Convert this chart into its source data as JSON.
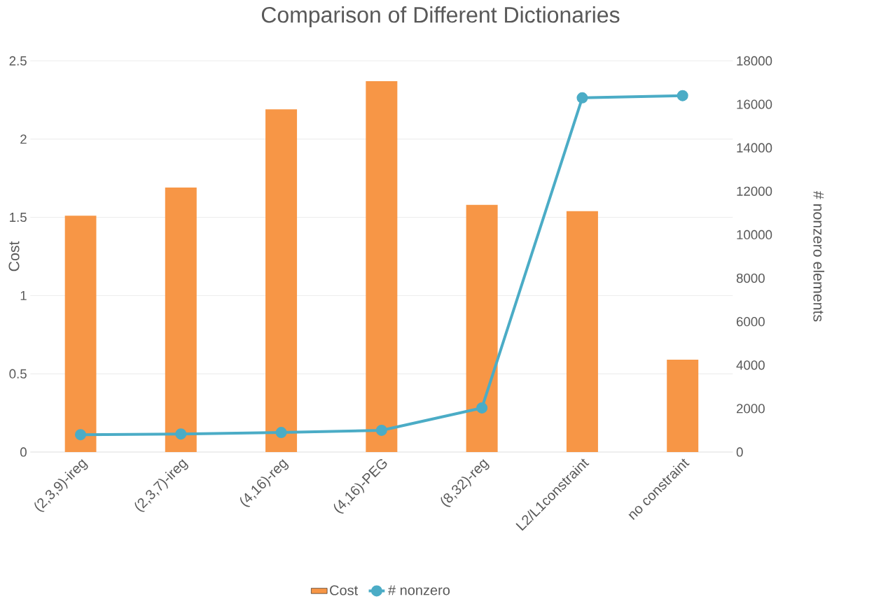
{
  "chart_data": {
    "type": "bar",
    "title": "Comparison of Different Dictionaries",
    "ylabel": "Cost",
    "y2label": "# nonzero elements",
    "categories": [
      "(2,3,9)-ireg",
      "(2,3,7)-ireg",
      "(4,16)-reg",
      "(4,16)-PEG",
      "(8,32)-reg",
      "L2/L1constraint",
      "no constraint"
    ],
    "series": [
      {
        "name": "Cost",
        "color": "#f79646",
        "values": [
          1.51,
          1.69,
          2.19,
          2.37,
          1.58,
          1.54,
          0.59
        ]
      },
      {
        "name": "# nonzero",
        "type": "line",
        "axis": "y2",
        "color": "#4bacc6",
        "values": [
          800,
          830,
          900,
          1000,
          2030,
          16300,
          16400
        ]
      }
    ],
    "ylim": [
      0,
      2.5
    ],
    "yticks": [
      0,
      0.5,
      1,
      1.5,
      2,
      2.5
    ],
    "y2lim": [
      0,
      18000
    ],
    "y2ticks": [
      0,
      2000,
      4000,
      6000,
      8000,
      10000,
      12000,
      14000,
      16000,
      18000
    ],
    "grid": "y",
    "legend": "bottom",
    "marker": "circle"
  }
}
